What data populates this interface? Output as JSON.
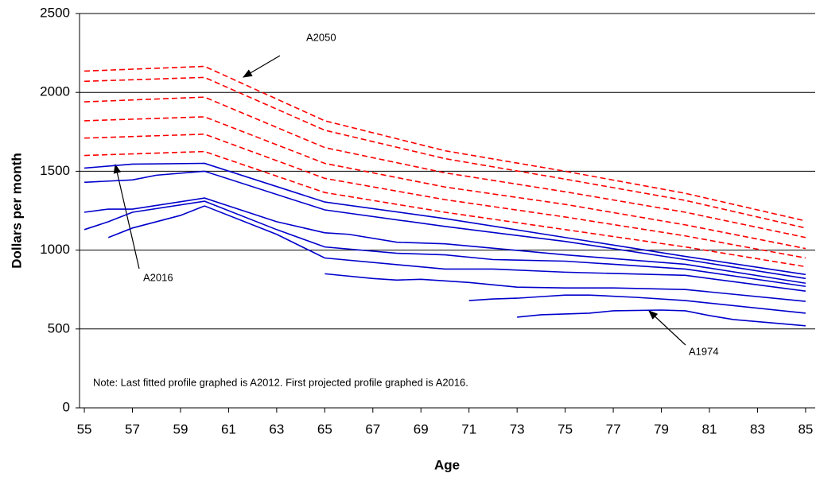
{
  "chart_data": {
    "type": "line",
    "xlabel": "Age",
    "ylabel": "Dollars per month",
    "xlim": [
      54.8,
      85.4
    ],
    "xticks": [
      55,
      57,
      59,
      61,
      63,
      65,
      67,
      69,
      71,
      73,
      75,
      77,
      79,
      81,
      83,
      85
    ],
    "ylim": [
      0,
      2500
    ],
    "yticks": [
      0,
      500,
      1000,
      1500,
      2000,
      2500
    ],
    "grid": true,
    "annotations": [
      "A2050",
      "A2016",
      "A1974",
      "Note:  Last fitted profile graphed is A2012.  First projected profile graphed is A2016."
    ],
    "series": [
      {
        "color": "#ff0000",
        "dashed": true,
        "x": [
          55,
          60,
          65,
          70,
          75,
          80,
          85
        ],
        "values": [
          2135,
          2165,
          1820,
          1630,
          1500,
          1360,
          1185
        ]
      },
      {
        "color": "#ff0000",
        "dashed": true,
        "x": [
          55,
          60,
          65,
          70,
          75,
          80,
          85
        ],
        "values": [
          2070,
          2095,
          1760,
          1580,
          1450,
          1315,
          1140
        ]
      },
      {
        "color": "#ff0000",
        "dashed": true,
        "x": [
          55,
          60,
          65,
          70,
          75,
          80,
          85
        ],
        "values": [
          1940,
          1970,
          1650,
          1490,
          1370,
          1240,
          1080
        ]
      },
      {
        "color": "#ff0000",
        "dashed": true,
        "x": [
          55,
          60,
          65,
          70,
          75,
          80,
          85
        ],
        "values": [
          1820,
          1845,
          1550,
          1400,
          1290,
          1160,
          1010
        ]
      },
      {
        "color": "#ff0000",
        "dashed": true,
        "x": [
          55,
          60,
          65,
          70,
          75,
          80,
          85
        ],
        "values": [
          1710,
          1735,
          1455,
          1320,
          1210,
          1090,
          950
        ]
      },
      {
        "color": "#ff0000",
        "dashed": true,
        "x": [
          55,
          60,
          65,
          70,
          75,
          80,
          85
        ],
        "values": [
          1600,
          1625,
          1365,
          1240,
          1130,
          1020,
          895
        ]
      },
      {
        "color": "#0000cc",
        "dashed": false,
        "x": [
          55,
          57,
          60,
          65,
          70,
          75,
          80,
          85
        ],
        "values": [
          1520,
          1545,
          1550,
          1305,
          1200,
          1080,
          960,
          845
        ]
      },
      {
        "color": "#0000cc",
        "dashed": false,
        "x": [
          55,
          57,
          58,
          60,
          65,
          70,
          75,
          80,
          85
        ],
        "values": [
          1430,
          1445,
          1475,
          1500,
          1255,
          1150,
          1055,
          940,
          820
        ]
      },
      {
        "color": "#0000cc",
        "dashed": false,
        "x": [
          55,
          56,
          57,
          60,
          63,
          65,
          66,
          68,
          70,
          75,
          80,
          85
        ],
        "values": [
          1240,
          1260,
          1260,
          1330,
          1180,
          1110,
          1100,
          1050,
          1040,
          970,
          910,
          790
        ]
      },
      {
        "color": "#0000cc",
        "dashed": false,
        "x": [
          55,
          56,
          57,
          60,
          63,
          65,
          68,
          70,
          72,
          75,
          80,
          85
        ],
        "values": [
          1130,
          1180,
          1240,
          1310,
          1130,
          1020,
          980,
          970,
          940,
          930,
          880,
          770
        ]
      },
      {
        "color": "#0000cc",
        "dashed": false,
        "x": [
          56,
          57,
          59,
          60,
          63,
          65,
          70,
          72,
          75,
          80,
          85
        ],
        "values": [
          1080,
          1140,
          1220,
          1280,
          1100,
          950,
          880,
          880,
          860,
          840,
          740
        ]
      },
      {
        "color": "#0000cc",
        "dashed": false,
        "x": [
          65,
          67,
          68,
          69,
          71,
          73,
          75,
          77,
          80,
          85
        ],
        "values": [
          850,
          820,
          810,
          815,
          795,
          765,
          760,
          760,
          750,
          675
        ]
      },
      {
        "color": "#0000cc",
        "dashed": false,
        "x": [
          71,
          72,
          73,
          74,
          75,
          76,
          78,
          80,
          85
        ],
        "values": [
          680,
          690,
          695,
          705,
          715,
          715,
          700,
          680,
          600
        ]
      },
      {
        "color": "#0000cc",
        "dashed": false,
        "x": [
          73,
          74,
          76,
          77,
          79,
          80,
          81,
          82,
          85
        ],
        "values": [
          575,
          590,
          600,
          615,
          620,
          615,
          585,
          560,
          520
        ]
      }
    ]
  }
}
